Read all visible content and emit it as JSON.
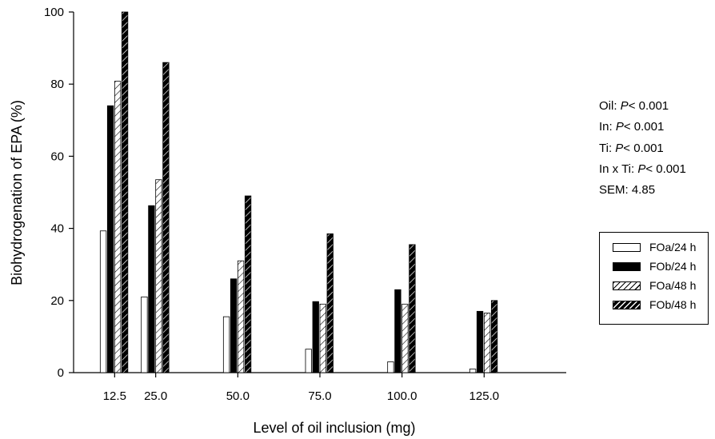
{
  "chart_data": {
    "type": "bar",
    "categories": [
      "12.5",
      "25.0",
      "50.0",
      "75.0",
      "100.0",
      "125.0"
    ],
    "category_values": [
      12.5,
      25.0,
      50.0,
      75.0,
      100.0,
      125.0
    ],
    "series": [
      {
        "name": "FOa/24 h",
        "values": [
          39.3,
          21.0,
          15.5,
          6.5,
          3.0,
          1.0
        ]
      },
      {
        "name": "FOb/24 h",
        "values": [
          74.0,
          46.3,
          26.0,
          19.7,
          23.0,
          17.0
        ]
      },
      {
        "name": "FOa/48 h",
        "values": [
          80.8,
          53.5,
          31.0,
          19.0,
          19.0,
          16.5
        ]
      },
      {
        "name": "FOb/48 h",
        "values": [
          100.0,
          86.0,
          49.0,
          38.5,
          35.5,
          20.0
        ]
      }
    ],
    "ylabel": "Biohydrogenation of EPA (%)",
    "xlabel": "Level of oil inclusion (mg)",
    "ylim": [
      0,
      100
    ],
    "yticks": [
      0,
      20,
      40,
      60,
      80,
      100
    ],
    "xlim": [
      0,
      150
    ],
    "grid": false,
    "legend_position": "right",
    "annotations": [
      {
        "label": "Oil: ",
        "p": "P",
        "value": "< 0.001"
      },
      {
        "label": "In: ",
        "p": "P",
        "value": "< 0.001"
      },
      {
        "label": "Ti: ",
        "p": "P",
        "value": "< 0.001"
      },
      {
        "label": "In x Ti: ",
        "p": "P",
        "value": "< 0.001"
      },
      {
        "label": "SEM: 4.85",
        "p": "",
        "value": ""
      }
    ]
  }
}
